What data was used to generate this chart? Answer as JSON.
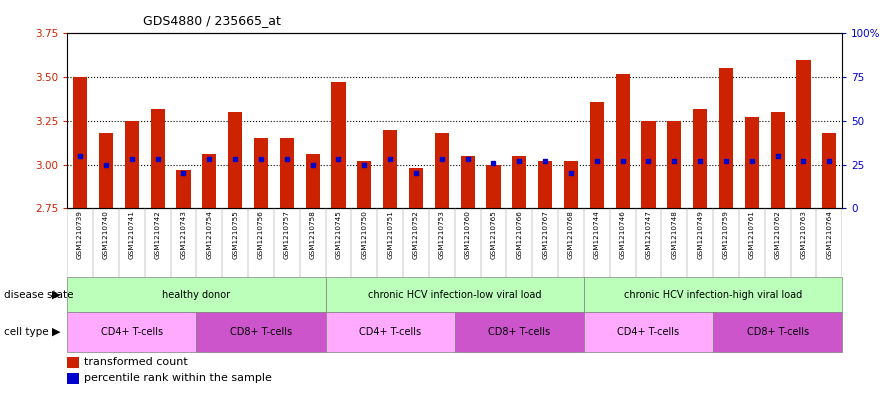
{
  "title": "GDS4880 / 235665_at",
  "samples": [
    "GSM1210739",
    "GSM1210740",
    "GSM1210741",
    "GSM1210742",
    "GSM1210743",
    "GSM1210754",
    "GSM1210755",
    "GSM1210756",
    "GSM1210757",
    "GSM1210758",
    "GSM1210745",
    "GSM1210750",
    "GSM1210751",
    "GSM1210752",
    "GSM1210753",
    "GSM1210760",
    "GSM1210765",
    "GSM1210766",
    "GSM1210767",
    "GSM1210768",
    "GSM1210744",
    "GSM1210746",
    "GSM1210747",
    "GSM1210748",
    "GSM1210749",
    "GSM1210759",
    "GSM1210761",
    "GSM1210762",
    "GSM1210763",
    "GSM1210764"
  ],
  "transformed_count": [
    3.5,
    3.18,
    3.25,
    3.32,
    2.97,
    3.06,
    3.3,
    3.15,
    3.15,
    3.06,
    3.47,
    3.02,
    3.2,
    2.98,
    3.18,
    3.05,
    3.0,
    3.05,
    3.02,
    3.02,
    3.36,
    3.52,
    3.25,
    3.25,
    3.32,
    3.55,
    3.27,
    3.3,
    3.6,
    3.18
  ],
  "percentile_rank": [
    30,
    25,
    28,
    28,
    20,
    28,
    28,
    28,
    28,
    25,
    28,
    25,
    28,
    20,
    28,
    28,
    26,
    27,
    27,
    20,
    27,
    27,
    27,
    27,
    27,
    27,
    27,
    30,
    27,
    27
  ],
  "ymin": 2.75,
  "ymax": 3.75,
  "bar_color": "#cc2200",
  "dot_color": "#0000cc",
  "left_axis_color": "#cc2200",
  "right_axis_color": "#0000cc",
  "left_ticks": [
    2.75,
    3.0,
    3.25,
    3.5,
    3.75
  ],
  "dotted_lines": [
    3.0,
    3.25,
    3.5
  ],
  "right_ticks": [
    0,
    25,
    50,
    75,
    100
  ],
  "right_tick_labels": [
    "0",
    "25",
    "50",
    "75",
    "100%"
  ],
  "disease_groups": [
    {
      "label": "healthy donor",
      "start": 0,
      "end": 10,
      "color": "#bbffbb"
    },
    {
      "label": "chronic HCV infection-low viral load",
      "start": 10,
      "end": 20,
      "color": "#bbffbb"
    },
    {
      "label": "chronic HCV infection-high viral load",
      "start": 20,
      "end": 30,
      "color": "#bbffbb"
    }
  ],
  "cell_type_groups": [
    {
      "label": "CD4+ T-cells",
      "start": 0,
      "end": 5,
      "color": "#ffaaff"
    },
    {
      "label": "CD8+ T-cells",
      "start": 5,
      "end": 10,
      "color": "#cc55cc"
    },
    {
      "label": "CD4+ T-cells",
      "start": 10,
      "end": 15,
      "color": "#ffaaff"
    },
    {
      "label": "CD8+ T-cells",
      "start": 15,
      "end": 20,
      "color": "#cc55cc"
    },
    {
      "label": "CD4+ T-cells",
      "start": 20,
      "end": 25,
      "color": "#ffaaff"
    },
    {
      "label": "CD8+ T-cells",
      "start": 25,
      "end": 30,
      "color": "#cc55cc"
    }
  ],
  "disease_state_label": "disease state",
  "cell_type_label": "cell type",
  "legend_items": [
    {
      "label": "transformed count",
      "color": "#cc2200"
    },
    {
      "label": "percentile rank within the sample",
      "color": "#0000cc"
    }
  ]
}
